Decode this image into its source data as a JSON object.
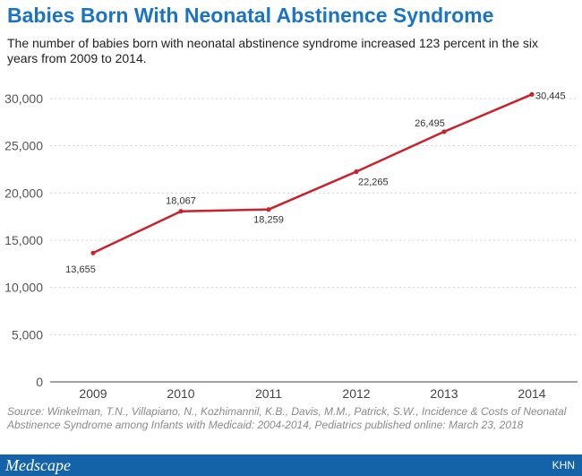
{
  "header": {
    "title": "Babies Born With Neonatal Abstinence Syndrome",
    "subtitle": "The number of babies born with neonatal abstinence syndrome increased 123 percent in the six years from 2009 to 2014."
  },
  "source": "Source: Winkelman, T.N., Villapiano, N., Kozhimannil, K.B., Davis, M.M., Patrick, S.W., Incidence & Costs of Neonatal Abstinence Syndrome among Infants with Medicaid: 2004-2014, Pediatrics published online: March 23, 2018",
  "footer": {
    "logo": "Medscape",
    "right": "KHN"
  },
  "colors": {
    "title": "#1a73c6",
    "line": "#c8232c",
    "footer": "#1463a8"
  },
  "chart_data": {
    "type": "line",
    "title": "Babies Born With Neonatal Abstinence Syndrome",
    "xlabel": "",
    "ylabel": "",
    "categories": [
      "2009",
      "2010",
      "2011",
      "2012",
      "2013",
      "2014"
    ],
    "series": [
      {
        "values": [
          13655,
          18067,
          18259,
          22265,
          26495,
          30445
        ]
      }
    ],
    "data_labels": [
      "13,655",
      "18,067",
      "18,259",
      "22,265",
      "26,495",
      "30,445"
    ],
    "ylim": [
      0,
      30000
    ],
    "yticks": [
      0,
      5000,
      10000,
      15000,
      20000,
      25000,
      30000
    ],
    "ytick_labels": [
      "0",
      "5,000",
      "10,000",
      "15,000",
      "20,000",
      "25,000",
      "30,000"
    ],
    "grid": "horizontal dashed",
    "legend": "none"
  }
}
